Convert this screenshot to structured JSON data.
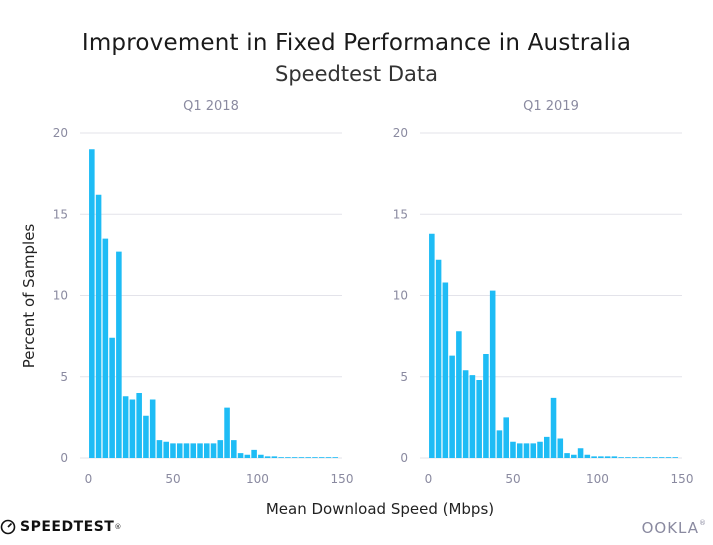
{
  "header": {
    "title": "Improvement in Fixed Performance in Australia",
    "subtitle": "Speedtest Data"
  },
  "logos": {
    "left_text": "SPEEDTEST",
    "left_tm": "®",
    "right_text": "OOKLA",
    "right_tm": "®"
  },
  "colors": {
    "bar": "#1ebcf5",
    "grid": "#e3e3ea",
    "tick": "#8a8aa0"
  },
  "chart_data": [
    {
      "type": "bar",
      "title": "Q1  2018",
      "ylabel": "Percent of Samples",
      "xlabel": "Mean Download Speed (Mbps)",
      "xlim": [
        -5,
        150
      ],
      "ylim": [
        0,
        20
      ],
      "xticks": [
        "0",
        "50",
        "100",
        "150"
      ],
      "yticks": [
        "0",
        "5",
        "10",
        "15",
        "20"
      ],
      "bin_width": 4,
      "bin_starts": [
        0,
        4,
        8,
        12,
        16,
        20,
        24,
        28,
        32,
        36,
        40,
        44,
        48,
        52,
        56,
        60,
        64,
        68,
        72,
        76,
        80,
        84,
        88,
        92,
        96,
        100,
        104,
        108,
        112,
        116,
        120,
        124,
        128,
        132,
        136,
        140,
        144
      ],
      "values": [
        19.0,
        16.2,
        13.5,
        7.4,
        12.7,
        3.8,
        3.6,
        4.0,
        2.6,
        3.6,
        1.1,
        1.0,
        0.9,
        0.9,
        0.9,
        0.9,
        0.9,
        0.9,
        0.9,
        1.1,
        3.1,
        1.1,
        0.3,
        0.2,
        0.5,
        0.2,
        0.1,
        0.1,
        0.05,
        0.05,
        0.05,
        0.05,
        0.05,
        0.05,
        0.05,
        0.05,
        0.05
      ]
    },
    {
      "type": "bar",
      "title": "Q1  2019",
      "ylabel": "",
      "xlabel": "Mean Download Speed (Mbps)",
      "xlim": [
        -5,
        150
      ],
      "ylim": [
        0,
        20
      ],
      "xticks": [
        "0",
        "50",
        "100",
        "150"
      ],
      "yticks": [
        "0",
        "5",
        "10",
        "15",
        "20"
      ],
      "bin_width": 4,
      "bin_starts": [
        0,
        4,
        8,
        12,
        16,
        20,
        24,
        28,
        32,
        36,
        40,
        44,
        48,
        52,
        56,
        60,
        64,
        68,
        72,
        76,
        80,
        84,
        88,
        92,
        96,
        100,
        104,
        108,
        112,
        116,
        120,
        124,
        128,
        132,
        136,
        140,
        144
      ],
      "values": [
        13.8,
        12.2,
        10.8,
        6.3,
        7.8,
        5.4,
        5.1,
        4.8,
        6.4,
        10.3,
        1.7,
        2.5,
        1.0,
        0.9,
        0.9,
        0.9,
        1.0,
        1.3,
        3.7,
        1.2,
        0.3,
        0.2,
        0.6,
        0.2,
        0.1,
        0.1,
        0.1,
        0.1,
        0.05,
        0.05,
        0.05,
        0.05,
        0.05,
        0.05,
        0.05,
        0.05,
        0.05
      ]
    }
  ]
}
